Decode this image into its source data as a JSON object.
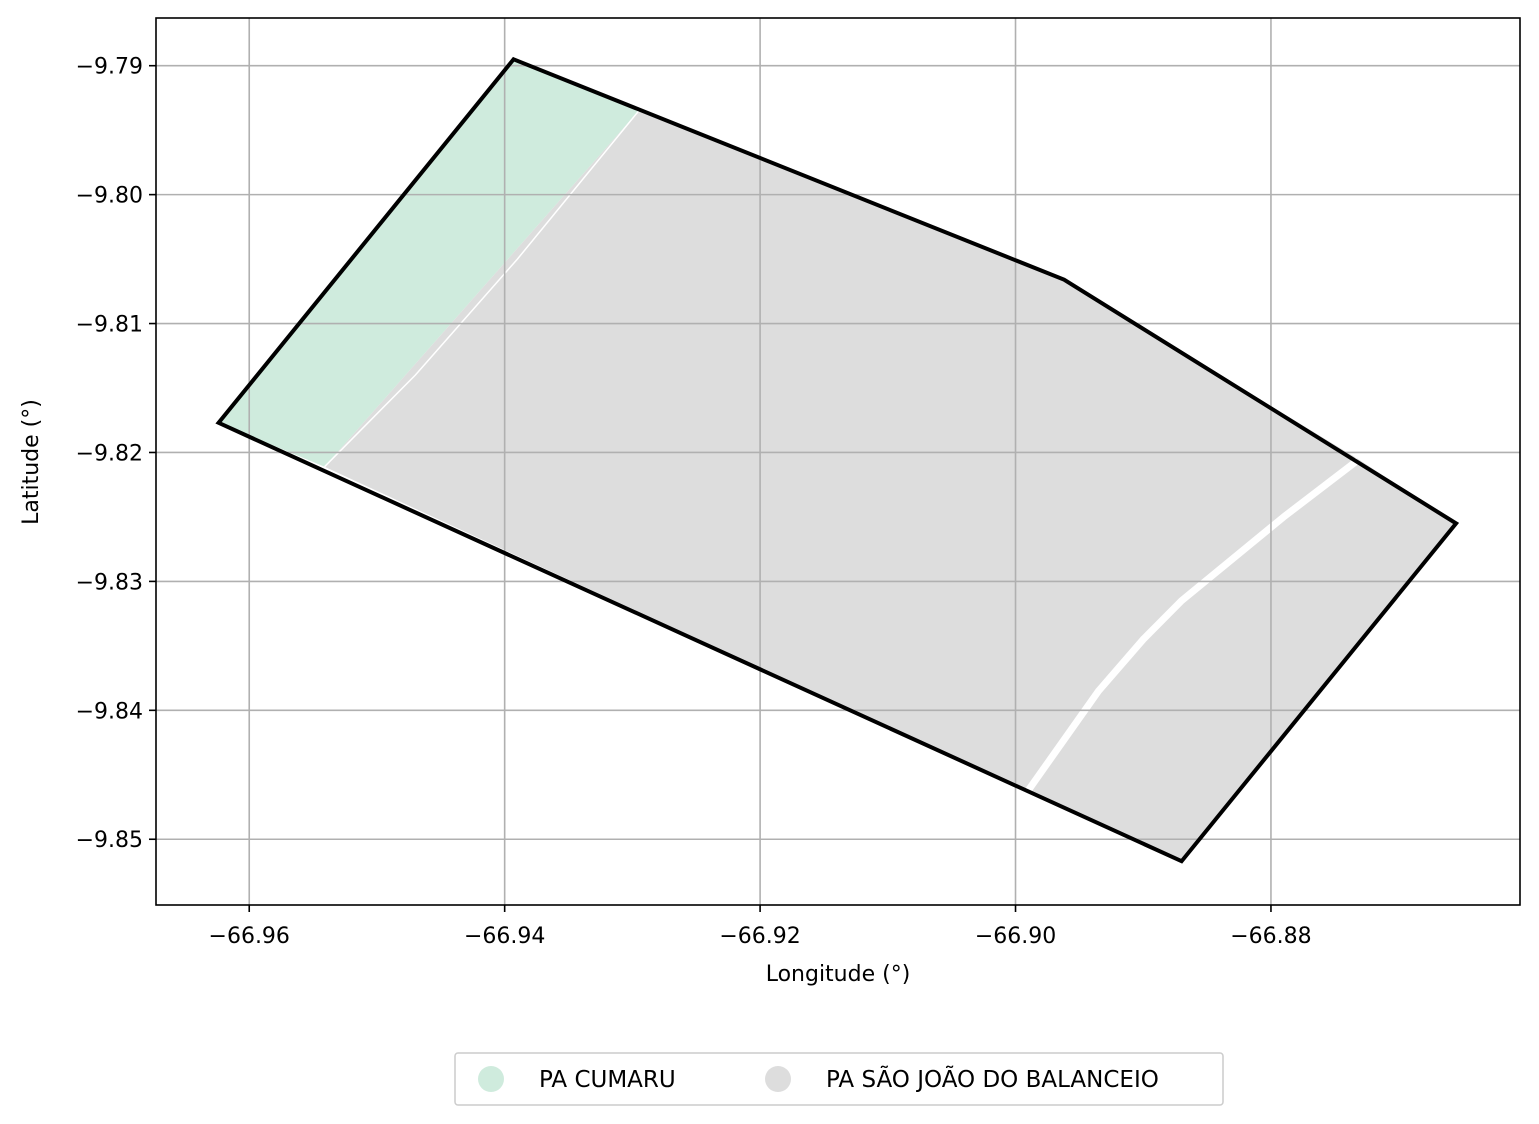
{
  "chart_data": {
    "type": "map",
    "xlabel": "Longitude (°)",
    "ylabel": "Latitude (°)",
    "xlim": [
      -66.9673,
      -66.8605
    ],
    "ylim": [
      -9.8551,
      -9.7863
    ],
    "xticks": [
      -66.96,
      -66.94,
      -66.92,
      -66.9,
      -66.88
    ],
    "xtick_labels": [
      "−66.96",
      "−66.94",
      "−66.92",
      "−66.90",
      "−66.88"
    ],
    "yticks": [
      -9.79,
      -9.8,
      -9.81,
      -9.82,
      -9.83,
      -9.84,
      -9.85
    ],
    "ytick_labels": [
      "−9.79",
      "−9.80",
      "−9.81",
      "−9.82",
      "−9.83",
      "−9.84",
      "−9.85"
    ],
    "grid": true,
    "legend_position": "bottom-center",
    "regions": [
      {
        "name": "PA CUMARU",
        "color": "#cfebdd",
        "polygon": [
          [
            -66.9393,
            -9.7895
          ],
          [
            -66.9295,
            -9.7935
          ],
          [
            -66.9541,
            -9.8211
          ],
          [
            -66.9624,
            -9.8177
          ]
        ]
      },
      {
        "name": "PA SÃO JOÃO DO BALANCEIO",
        "color": "#dddddd",
        "polygon": [
          [
            -66.9295,
            -9.7935
          ],
          [
            -66.8962,
            -9.8066
          ],
          [
            -66.8732,
            -9.8205
          ],
          [
            -66.8655,
            -9.8255
          ],
          [
            -66.887,
            -9.8517
          ],
          [
            -66.9,
            -9.8459
          ],
          [
            -66.9541,
            -9.8211
          ]
        ]
      }
    ],
    "boundary": {
      "color": "#000000",
      "polygon": [
        [
          -66.9393,
          -9.7895
        ],
        [
          -66.8962,
          -9.8066
        ],
        [
          -66.8655,
          -9.8255
        ],
        [
          -66.887,
          -9.8517
        ],
        [
          -66.9624,
          -9.8177
        ]
      ]
    },
    "inner_lines": [
      {
        "color": "#ffffff",
        "width": "thin",
        "points": [
          [
            -66.9295,
            -9.7935
          ],
          [
            -66.939,
            -9.805
          ],
          [
            -66.947,
            -9.814
          ],
          [
            -66.9541,
            -9.8211
          ]
        ]
      },
      {
        "color": "#ffffff",
        "width": "thick",
        "points": [
          [
            -66.8732,
            -9.8206
          ],
          [
            -66.879,
            -9.825
          ],
          [
            -66.887,
            -9.8315
          ],
          [
            -66.89,
            -9.8345
          ],
          [
            -66.8935,
            -9.8385
          ],
          [
            -66.899,
            -9.8462
          ]
        ]
      }
    ]
  }
}
